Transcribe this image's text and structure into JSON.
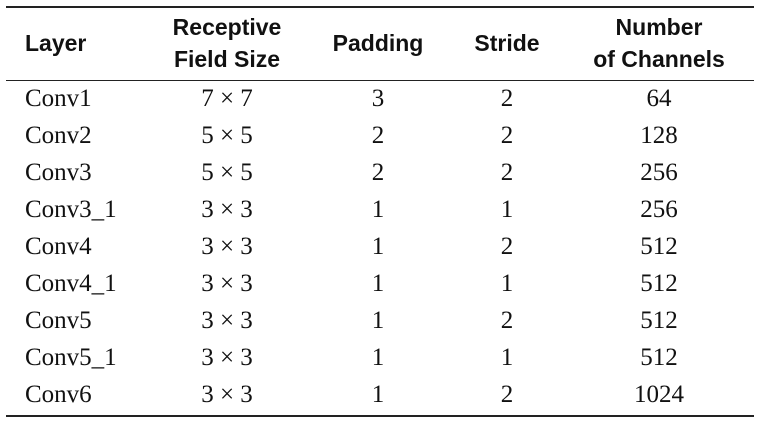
{
  "table": {
    "header": [
      [
        "Layer"
      ],
      [
        "Receptive",
        "Field Size"
      ],
      [
        "Padding"
      ],
      [
        "Stride"
      ],
      [
        "Number",
        "of Channels"
      ]
    ],
    "rows": [
      [
        "Conv1",
        "7 × 7",
        "3",
        "2",
        "64"
      ],
      [
        "Conv2",
        "5 × 5",
        "2",
        "2",
        "128"
      ],
      [
        "Conv3",
        "5 × 5",
        "2",
        "2",
        "256"
      ],
      [
        "Conv3_1",
        "3 × 3",
        "1",
        "1",
        "256"
      ],
      [
        "Conv4",
        "3 × 3",
        "1",
        "2",
        "512"
      ],
      [
        "Conv4_1",
        "3 × 3",
        "1",
        "1",
        "512"
      ],
      [
        "Conv5",
        "3 × 3",
        "1",
        "2",
        "512"
      ],
      [
        "Conv5_1",
        "3 × 3",
        "1",
        "1",
        "512"
      ],
      [
        "Conv6",
        "3 × 3",
        "1",
        "2",
        "1024"
      ]
    ]
  }
}
